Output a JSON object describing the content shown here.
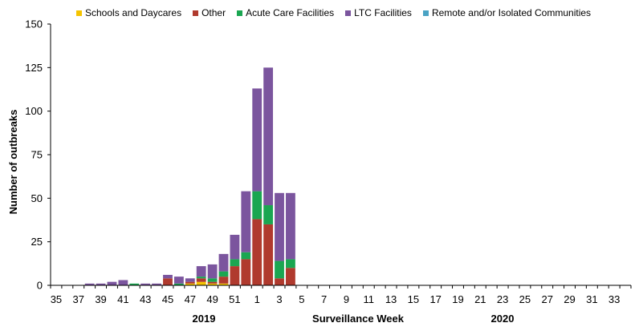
{
  "colors": {
    "schools": "#f5c400",
    "other": "#b03a2e",
    "acute": "#1aa651",
    "ltc": "#7b559e",
    "remote": "#4aa3c4",
    "axis": "#000000"
  },
  "chart_data": {
    "type": "bar",
    "stacked": true,
    "title": "",
    "xlabel": "Surveillance Week",
    "ylabel": "Number of outbreaks",
    "ylim": [
      0,
      150
    ],
    "yticks": [
      0,
      25,
      50,
      75,
      100,
      125,
      150
    ],
    "year_labels": [
      "2019",
      "2020"
    ],
    "legend_position": "top",
    "categories": [
      "35",
      "36",
      "37",
      "38",
      "39",
      "40",
      "41",
      "42",
      "43",
      "44",
      "45",
      "46",
      "47",
      "48",
      "49",
      "50",
      "51",
      "52",
      "1",
      "2",
      "3",
      "4",
      "5",
      "6",
      "7",
      "8",
      "9",
      "10",
      "11",
      "12",
      "13",
      "14",
      "15",
      "16",
      "17",
      "18",
      "19",
      "20",
      "21",
      "22",
      "23",
      "24",
      "25",
      "26",
      "27",
      "28",
      "29",
      "30",
      "31",
      "32",
      "33",
      "34"
    ],
    "tick_labels": [
      "35",
      "37",
      "39",
      "41",
      "43",
      "45",
      "47",
      "49",
      "51",
      "1",
      "3",
      "5",
      "7",
      "9",
      "11",
      "13",
      "15",
      "17",
      "19",
      "21",
      "23",
      "25",
      "27",
      "29",
      "31",
      "33"
    ],
    "series": [
      {
        "name": "Schools and Daycares",
        "key": "schools",
        "values": [
          0,
          0,
          0,
          0,
          0,
          0,
          0,
          0,
          0,
          0,
          0,
          0,
          1,
          2,
          1,
          1,
          0,
          0,
          0,
          0,
          0,
          0,
          0,
          0,
          0,
          0,
          0,
          0,
          0,
          0,
          0,
          0,
          0,
          0,
          0,
          0,
          0,
          0,
          0,
          0,
          0,
          0,
          0,
          0,
          0,
          0,
          0,
          0,
          0,
          0,
          0,
          0
        ]
      },
      {
        "name": "Other",
        "key": "other",
        "values": [
          0,
          0,
          0,
          0,
          0,
          0,
          0,
          0,
          0,
          0,
          4,
          0,
          1,
          2,
          1,
          4,
          11,
          15,
          38,
          35,
          4,
          10,
          0,
          0,
          0,
          0,
          0,
          0,
          0,
          0,
          0,
          0,
          0,
          0,
          0,
          0,
          0,
          0,
          0,
          0,
          0,
          0,
          0,
          0,
          0,
          0,
          0,
          0,
          0,
          0,
          0,
          0
        ]
      },
      {
        "name": "Acute Care Facilities",
        "key": "acute",
        "values": [
          0,
          0,
          0,
          0,
          0,
          0,
          0,
          1,
          0,
          0,
          0,
          1,
          0,
          1,
          2,
          3,
          4,
          4,
          16,
          11,
          10,
          5,
          0,
          0,
          0,
          0,
          0,
          0,
          0,
          0,
          0,
          0,
          0,
          0,
          0,
          0,
          0,
          0,
          0,
          0,
          0,
          0,
          0,
          0,
          0,
          0,
          0,
          0,
          0,
          0,
          0,
          0
        ]
      },
      {
        "name": "LTC Facilities",
        "key": "ltc",
        "values": [
          0,
          0,
          0,
          1,
          1,
          2,
          3,
          0,
          1,
          1,
          2,
          4,
          2,
          6,
          8,
          10,
          14,
          35,
          59,
          79,
          39,
          38,
          0,
          0,
          0,
          0,
          0,
          0,
          0,
          0,
          0,
          0,
          0,
          0,
          0,
          0,
          0,
          0,
          0,
          0,
          0,
          0,
          0,
          0,
          0,
          0,
          0,
          0,
          0,
          0,
          0,
          0
        ]
      },
      {
        "name": "Remote and/or Isolated Communities",
        "key": "remote",
        "values": [
          0,
          0,
          0,
          0,
          0,
          0,
          0,
          0,
          0,
          0,
          0,
          0,
          0,
          0,
          0,
          0,
          0,
          0,
          0,
          0,
          0,
          0,
          0,
          0,
          0,
          0,
          0,
          0,
          0,
          0,
          0,
          0,
          0,
          0,
          0,
          0,
          0,
          0,
          0,
          0,
          0,
          0,
          0,
          0,
          0,
          0,
          0,
          0,
          0,
          0,
          0,
          0
        ]
      }
    ]
  }
}
